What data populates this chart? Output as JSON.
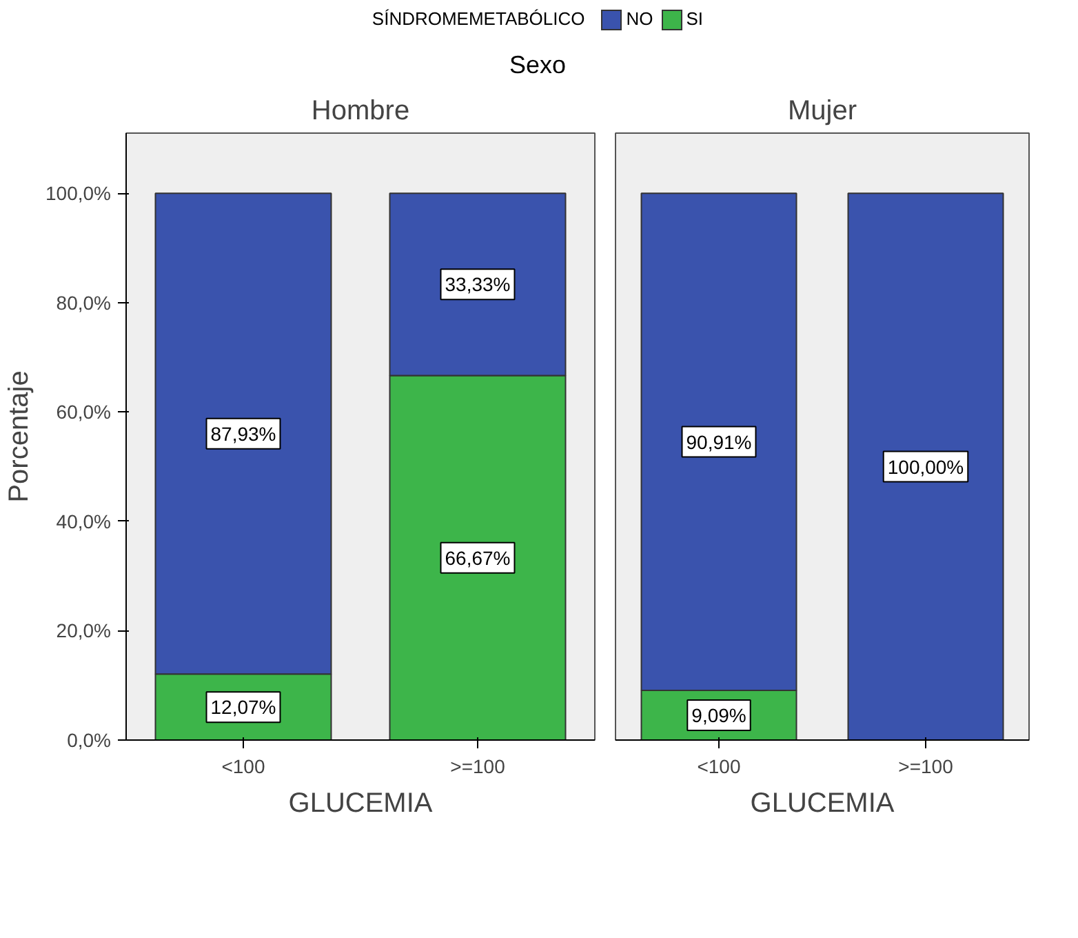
{
  "chart_data": [
    {
      "type": "bar",
      "title": "Hombre",
      "xlabel": "GLUCEMIA",
      "ylabel": "Porcentaje",
      "legend_title": "SÍNDROMEMETABÓLICO",
      "legend": "top",
      "annotations": [
        "Sexo"
      ],
      "stacked": true,
      "categories": [
        "<100",
        ">=100"
      ],
      "ylim": [
        0,
        111
      ],
      "yticks": [
        {
          "value": 0,
          "label": "0,0%"
        },
        {
          "value": 20,
          "label": "20,0%"
        },
        {
          "value": 40,
          "label": "40,0%"
        },
        {
          "value": 60,
          "label": "60,0%"
        },
        {
          "value": 80,
          "label": "80,0%"
        },
        {
          "value": 100,
          "label": "100,0%"
        }
      ],
      "grid": false,
      "series": [
        {
          "name": "SI",
          "color": "#3db54a",
          "values": [
            12.07,
            66.67
          ],
          "value_labels": [
            "12,07%",
            "66,67%"
          ]
        },
        {
          "name": "NO",
          "color": "#3a53ad",
          "values": [
            87.93,
            33.33
          ],
          "value_labels": [
            "87,93%",
            "33,33%"
          ]
        }
      ]
    },
    {
      "type": "bar",
      "title": "Mujer",
      "xlabel": "GLUCEMIA",
      "stacked": true,
      "categories": [
        "<100",
        ">=100"
      ],
      "ylim": [
        0,
        111
      ],
      "tick_labels": "x",
      "grid": false,
      "series": [
        {
          "color": "#3db54a",
          "values": [
            9.09,
            null
          ],
          "value_labels": [
            "9,09%",
            null
          ]
        },
        {
          "color": "#3a53ad",
          "values": [
            90.91,
            100
          ],
          "value_labels": [
            "90,91%",
            "100,00%"
          ]
        }
      ]
    }
  ]
}
